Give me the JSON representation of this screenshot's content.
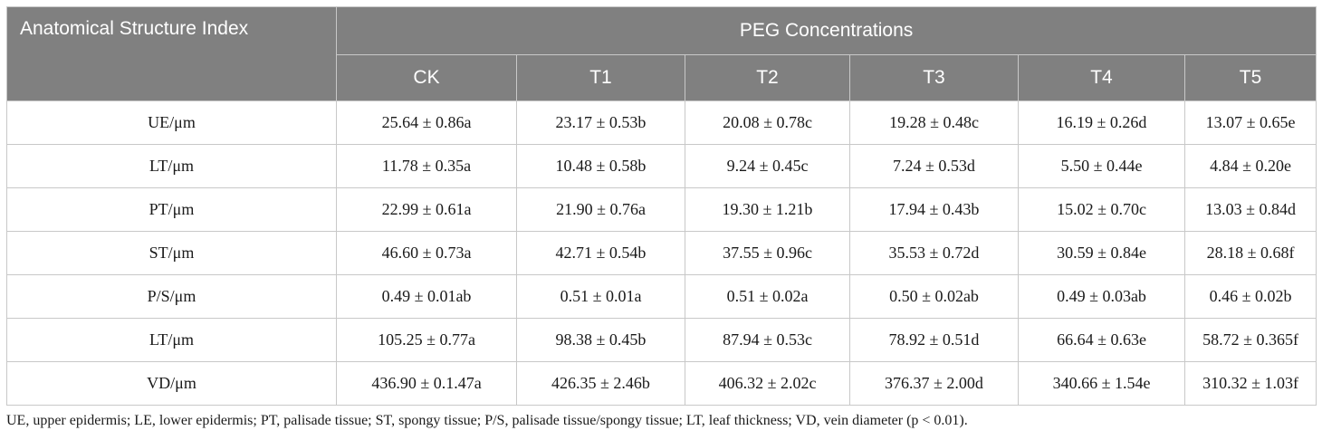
{
  "table": {
    "index_header": "Anatomical Structure Index",
    "group_header": "PEG Concentrations",
    "columns": [
      "CK",
      "T1",
      "T2",
      "T3",
      "T4",
      "T5"
    ],
    "rows": [
      {
        "label": "UE/μm",
        "values": [
          "25.64 ± 0.86a",
          "23.17 ± 0.53b",
          "20.08 ± 0.78c",
          "19.28 ± 0.48c",
          "16.19 ± 0.26d",
          "13.07 ± 0.65e"
        ]
      },
      {
        "label": "LT/μm",
        "values": [
          "11.78 ± 0.35a",
          "10.48 ± 0.58b",
          "9.24 ± 0.45c",
          "7.24 ± 0.53d",
          "5.50 ± 0.44e",
          "4.84 ± 0.20e"
        ]
      },
      {
        "label": "PT/μm",
        "values": [
          "22.99 ± 0.61a",
          "21.90 ± 0.76a",
          "19.30 ± 1.21b",
          "17.94 ± 0.43b",
          "15.02 ± 0.70c",
          "13.03 ± 0.84d"
        ]
      },
      {
        "label": "ST/μm",
        "values": [
          "46.60 ± 0.73a",
          "42.71 ± 0.54b",
          "37.55 ± 0.96c",
          "35.53 ± 0.72d",
          "30.59 ± 0.84e",
          "28.18 ± 0.68f"
        ]
      },
      {
        "label": "P/S/μm",
        "values": [
          "0.49 ± 0.01ab",
          "0.51 ± 0.01a",
          "0.51 ± 0.02a",
          "0.50 ± 0.02ab",
          "0.49 ± 0.03ab",
          "0.46 ± 0.02b"
        ]
      },
      {
        "label": "LT/μm",
        "values": [
          "105.25 ± 0.77a",
          "98.38 ± 0.45b",
          "87.94 ± 0.53c",
          "78.92 ± 0.51d",
          "66.64 ± 0.63e",
          "58.72 ± 0.365f"
        ]
      },
      {
        "label": "VD/μm",
        "values": [
          "436.90 ± 0.1.47a",
          "426.35 ± 2.46b",
          "406.32 ± 2.02c",
          "376.37 ± 2.00d",
          "340.66 ± 1.54e",
          "310.32 ± 1.03f"
        ]
      }
    ]
  },
  "footnote": "UE, upper epidermis; LE, lower epidermis; PT, palisade tissue; ST, spongy tissue; P/S, palisade tissue/spongy tissue; LT, leaf thickness; VD, vein diameter (p < 0.01).",
  "colors": {
    "header_bg": "#808080",
    "header_text": "#ffffff",
    "border": "#c8c8c8"
  }
}
